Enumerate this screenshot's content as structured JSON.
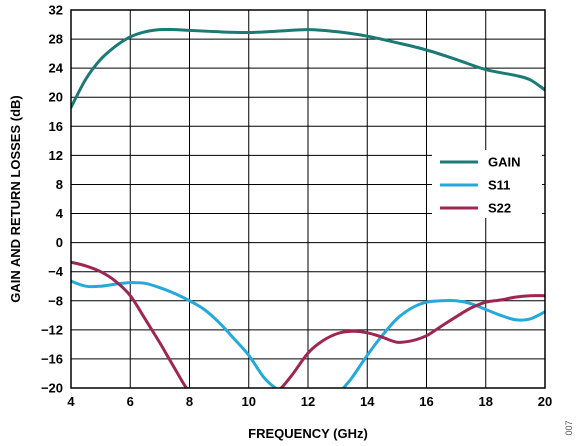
{
  "chart_data": {
    "type": "line",
    "xlabel": "FREQUENCY (GHz)",
    "ylabel": "GAIN AND RETURN LOSSES (dB)",
    "xlim": [
      4,
      20
    ],
    "ylim": [
      -20,
      32
    ],
    "xticks": [
      4,
      6,
      8,
      10,
      12,
      14,
      16,
      18,
      20
    ],
    "yticks": [
      -20,
      -16,
      -12,
      -8,
      -4,
      0,
      4,
      8,
      12,
      16,
      20,
      24,
      28,
      32
    ],
    "grid": true,
    "legend_position": "right",
    "figure_id": "007",
    "series": [
      {
        "name": "GAIN",
        "color": "#1b7a74",
        "x": [
          4,
          4.5,
          5,
          5.5,
          6,
          6.5,
          7,
          7.5,
          8,
          9,
          10,
          11,
          12,
          13,
          14,
          15,
          16,
          17,
          18,
          19,
          19.5,
          20
        ],
        "y": [
          18.6,
          22.5,
          25.2,
          27.0,
          28.3,
          29.0,
          29.3,
          29.3,
          29.2,
          29.0,
          28.9,
          29.1,
          29.3,
          29.0,
          28.4,
          27.5,
          26.5,
          25.2,
          23.8,
          23.0,
          22.4,
          21.0
        ]
      },
      {
        "name": "S11",
        "color": "#25a9da",
        "x": [
          4,
          4.5,
          5,
          5.5,
          6,
          6.5,
          7,
          7.5,
          8,
          8.5,
          9,
          9.5,
          10,
          10.5,
          10.9,
          11.2,
          12,
          13,
          13.2,
          13.5,
          14,
          14.5,
          15,
          15.5,
          16,
          16.5,
          17,
          17.5,
          18,
          18.5,
          19,
          19.5,
          20
        ],
        "y": [
          -5.3,
          -6.0,
          -6.0,
          -5.7,
          -5.5,
          -5.6,
          -6.2,
          -7.0,
          -8.0,
          -9.2,
          -11.0,
          -13.2,
          -15.5,
          -18.5,
          -20.0,
          -20.5,
          -21.5,
          -21.0,
          -20.0,
          -18.5,
          -15.5,
          -12.8,
          -10.5,
          -9.0,
          -8.2,
          -8.0,
          -8.0,
          -8.4,
          -9.2,
          -10.0,
          -10.6,
          -10.5,
          -9.5
        ]
      },
      {
        "name": "S22",
        "color": "#9e2752",
        "x": [
          4,
          4.5,
          5,
          5.5,
          6,
          6.5,
          7,
          7.5,
          7.9,
          8.2,
          9,
          10,
          10.8,
          11.1,
          11.5,
          12,
          12.5,
          13,
          13.5,
          14,
          14.5,
          15,
          15.5,
          16,
          16.5,
          17,
          17.5,
          18,
          18.5,
          19,
          19.5,
          20
        ],
        "y": [
          -2.7,
          -3.2,
          -4.0,
          -5.3,
          -7.3,
          -10.5,
          -13.8,
          -17.3,
          -20.0,
          -21.0,
          -22.0,
          -22.0,
          -21.0,
          -20.0,
          -18.0,
          -15.2,
          -13.5,
          -12.5,
          -12.2,
          -12.4,
          -13.0,
          -13.7,
          -13.5,
          -12.8,
          -11.5,
          -10.2,
          -9.0,
          -8.2,
          -7.9,
          -7.5,
          -7.3,
          -7.3
        ]
      }
    ]
  }
}
